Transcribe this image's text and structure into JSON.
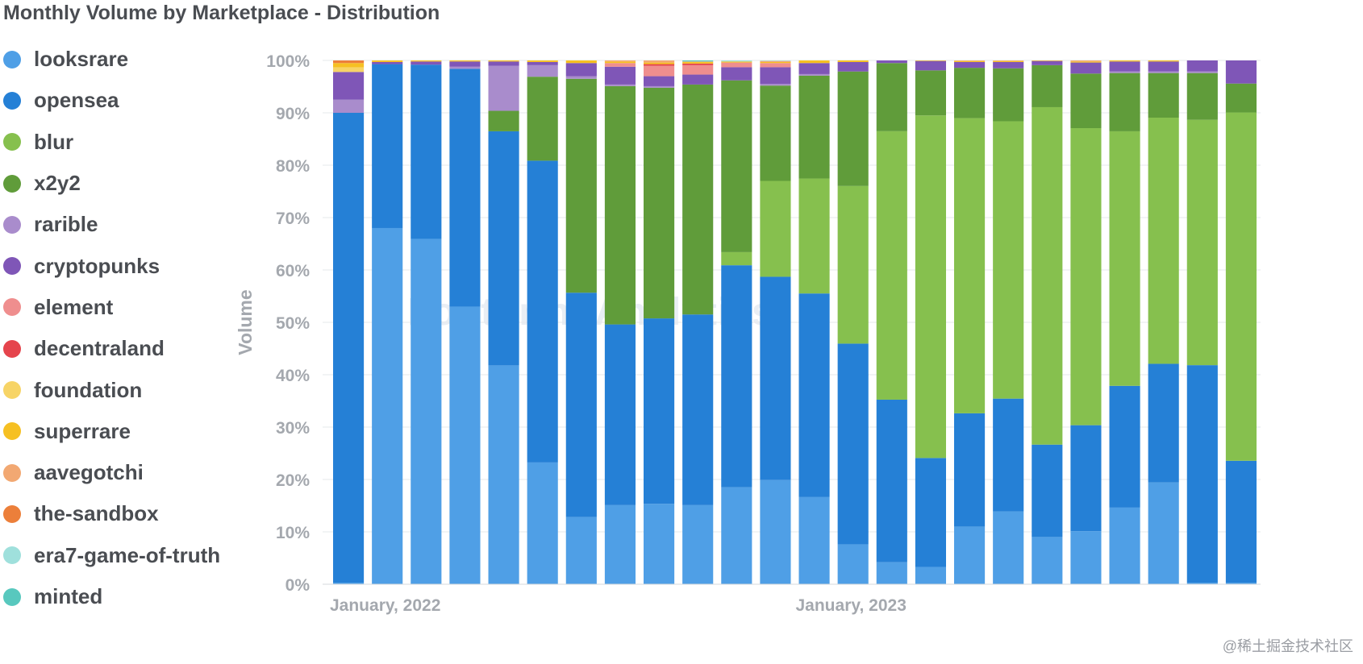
{
  "chart_data": {
    "type": "bar",
    "stacked": true,
    "title": "Monthly Volume by Marketplace - Distribution",
    "ylabel": "Volume",
    "ylim": [
      0,
      100
    ],
    "ytick_labels": [
      "0%",
      "10%",
      "20%",
      "30%",
      "40%",
      "50%",
      "60%",
      "70%",
      "80%",
      "90%",
      "100%"
    ],
    "xtick_labels": [
      {
        "label": "January, 2022",
        "index": 0
      },
      {
        "label": "January, 2023",
        "index": 12
      }
    ],
    "grid": true,
    "legend_position": "left",
    "months": 24,
    "series": [
      {
        "name": "looksrare",
        "color": "#4f9fe6",
        "values": [
          0.3,
          67.8,
          65.8,
          52.9,
          41.7,
          23.2,
          12.8,
          15.1,
          15.3,
          15.1,
          18.5,
          19.9,
          16.6,
          7.6,
          4.2,
          3.3,
          11.0,
          13.9,
          9.0,
          10.1,
          14.6,
          19.4,
          0.3,
          0.3
        ]
      },
      {
        "name": "opensea",
        "color": "#2580d6",
        "values": [
          89.7,
          31.2,
          33.2,
          45.3,
          44.6,
          57.5,
          42.8,
          34.5,
          35.3,
          36.4,
          42.4,
          38.8,
          38.8,
          38.2,
          31.0,
          20.8,
          21.6,
          21.5,
          17.6,
          20.2,
          23.2,
          22.6,
          41.4,
          23.2
        ]
      },
      {
        "name": "blur",
        "color": "#86c04e",
        "values": [
          0,
          0,
          0,
          0,
          0,
          0,
          0,
          0,
          0,
          0,
          2.5,
          18.3,
          21.9,
          30.0,
          51.2,
          65.4,
          56.3,
          52.9,
          64.3,
          56.6,
          48.5,
          46.9,
          46.7,
          66.3
        ]
      },
      {
        "name": "x2y2",
        "color": "#609c3a",
        "values": [
          0,
          0,
          0,
          0,
          3.9,
          16.0,
          40.8,
          45.5,
          43.9,
          43.9,
          32.8,
          18.2,
          19.6,
          21.8,
          13.0,
          8.6,
          9.6,
          10.1,
          8.0,
          10.4,
          11.1,
          8.5,
          8.9,
          5.5
        ]
      },
      {
        "name": "rarible",
        "color": "#a98ccc",
        "values": [
          2.5,
          0,
          0,
          0.4,
          8.6,
          2.2,
          0.5,
          0.3,
          0.3,
          0,
          0,
          0.3,
          0.3,
          0,
          0,
          0,
          0,
          0,
          0,
          0,
          0.3,
          0.3,
          0.3,
          0
        ]
      },
      {
        "name": "cryptopunks",
        "color": "#7f56b7",
        "values": [
          5.3,
          0.4,
          0.6,
          1.0,
          0.8,
          0.6,
          2.5,
          3.4,
          1.9,
          1.9,
          2.5,
          3.2,
          2.1,
          1.8,
          0.5,
          1.8,
          1.1,
          1.2,
          0.8,
          2.1,
          1.9,
          1.9,
          2.1,
          4.4
        ]
      },
      {
        "name": "element",
        "color": "#ef8e8e",
        "values": [
          0,
          0,
          0,
          0,
          0,
          0,
          0,
          0.7,
          2.0,
          1.8,
          0.9,
          0.8,
          0,
          0,
          0,
          0,
          0,
          0,
          0,
          0,
          0,
          0,
          0,
          0
        ]
      },
      {
        "name": "decentraland",
        "color": "#e5444c",
        "values": [
          0,
          0,
          0,
          0,
          0,
          0,
          0,
          0,
          0.3,
          0.3,
          0,
          0,
          0,
          0,
          0,
          0,
          0,
          0,
          0,
          0,
          0,
          0,
          0,
          0
        ]
      },
      {
        "name": "foundation",
        "color": "#f7d466",
        "values": [
          0.9,
          0,
          0,
          0,
          0,
          0,
          0,
          0,
          0,
          0,
          0,
          0,
          0,
          0,
          0,
          0,
          0,
          0,
          0,
          0,
          0,
          0,
          0,
          0
        ]
      },
      {
        "name": "superrare",
        "color": "#f6c022",
        "values": [
          0.8,
          0.3,
          0.2,
          0.2,
          0.2,
          0.3,
          0.5,
          0.3,
          0.3,
          0.3,
          0.2,
          0.2,
          0.5,
          0.3,
          0,
          0.1,
          0.2,
          0.2,
          0.1,
          0.2,
          0.2,
          0.2,
          0,
          0
        ]
      },
      {
        "name": "aavegotchi",
        "color": "#f2a872",
        "values": [
          0,
          0,
          0,
          0,
          0,
          0,
          0,
          0.2,
          0.4,
          0.1,
          0,
          0.2,
          0,
          0,
          0,
          0,
          0.1,
          0.1,
          0,
          0.2,
          0,
          0,
          0,
          0
        ]
      },
      {
        "name": "the-sandbox",
        "color": "#ec7f3a",
        "values": [
          0.5,
          0,
          0,
          0,
          0,
          0,
          0,
          0,
          0,
          0,
          0,
          0,
          0,
          0,
          0,
          0,
          0,
          0,
          0,
          0,
          0,
          0,
          0,
          0
        ]
      },
      {
        "name": "era7-game-of-truth",
        "color": "#9fe0dc",
        "values": [
          0,
          0,
          0,
          0,
          0,
          0,
          0,
          0,
          0,
          0,
          0.2,
          0.1,
          0,
          0,
          0,
          0,
          0,
          0,
          0,
          0,
          0,
          0,
          0,
          0
        ]
      },
      {
        "name": "minted",
        "color": "#58c8be",
        "values": [
          0,
          0,
          0,
          0,
          0,
          0,
          0,
          0,
          0,
          0.2,
          0,
          0,
          0,
          0,
          0,
          0,
          0,
          0,
          0,
          0,
          0,
          0,
          0,
          0
        ]
      }
    ]
  },
  "watermark": "@稀土掘金技术社区",
  "logo_text": "Footprint Analytics"
}
